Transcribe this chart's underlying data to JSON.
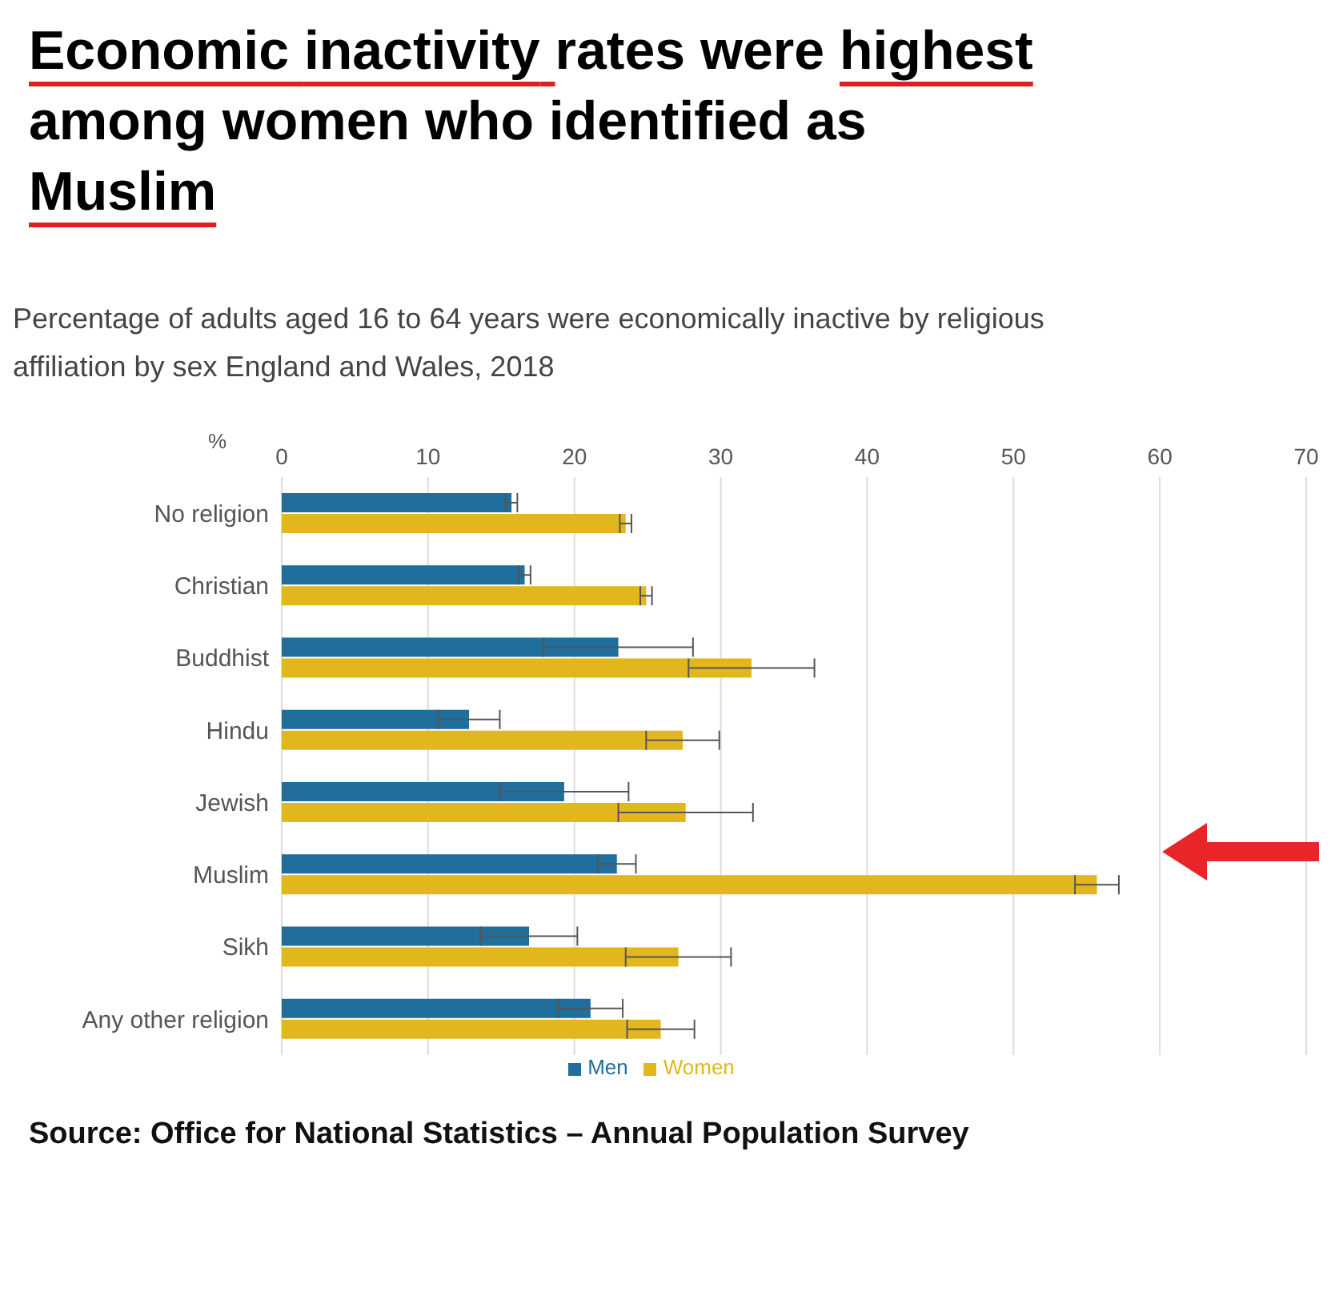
{
  "chart_data": {
    "type": "bar",
    "orientation": "horizontal",
    "title": "Economic inactivity rates were highest among women who identified as Muslim",
    "subtitle": "Percentage of adults aged 16 to 64 years were economically inactive by religious affiliation by sex England and Wales, 2018",
    "xlabel": "%",
    "categories": [
      "No religion",
      "Christian",
      "Buddhist",
      "Hindu",
      "Jewish",
      "Muslim",
      "Sikh",
      "Any other religion"
    ],
    "series": [
      {
        "name": "Men",
        "color": "#1f6e9c",
        "values": [
          15.7,
          16.6,
          23.0,
          12.8,
          19.3,
          22.9,
          16.9,
          21.1
        ],
        "errors": [
          0.4,
          0.4,
          5.1,
          2.1,
          4.4,
          1.3,
          3.3,
          2.2
        ]
      },
      {
        "name": "Women",
        "color": "#e2b71e",
        "values": [
          23.5,
          24.9,
          32.1,
          27.4,
          27.6,
          55.7,
          27.1,
          25.9
        ],
        "errors": [
          0.4,
          0.4,
          4.3,
          2.5,
          4.6,
          1.5,
          3.6,
          2.3
        ]
      }
    ],
    "xlim": [
      0,
      70
    ],
    "xticks": [
      0,
      10,
      20,
      30,
      40,
      50,
      60,
      70
    ],
    "grid": "x",
    "legend": "bottom",
    "annotations": [
      "Source: Office for National Statistics – Annual Population Survey"
    ]
  }
}
